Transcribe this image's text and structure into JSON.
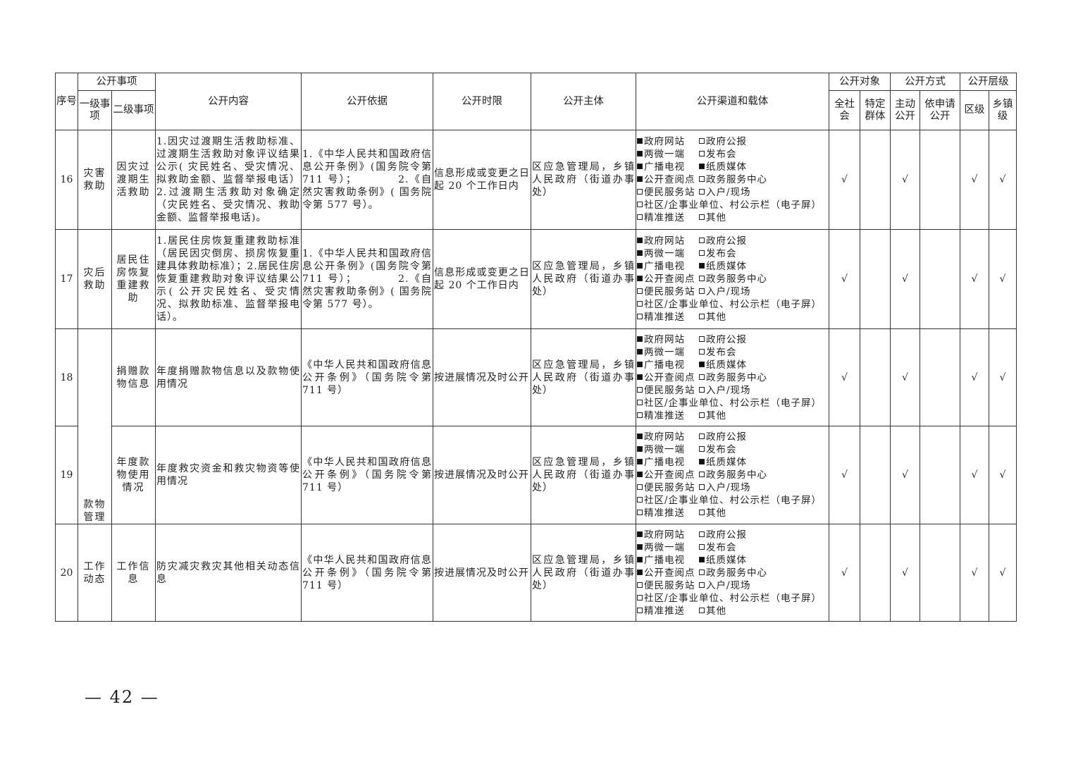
{
  "header": {
    "seq": "序号",
    "item_group": "公开事项",
    "level1": "一级事项",
    "level2": "二级事项",
    "content": "公开内容",
    "basis": "公开依据",
    "deadline": "公开时限",
    "subject": "公开主体",
    "channel": "公开渠道和载体",
    "target": "公开对象",
    "target_all": "全社会",
    "target_specific": "特定群体",
    "method": "公开方式",
    "method_active": "主动公开",
    "method_request": "依申请公开",
    "level": "公开层级",
    "level_district": "区级",
    "level_town": "乡镇级"
  },
  "check_mark": "√",
  "rows": [
    {
      "seq": "16",
      "level1": "灾害救助",
      "level2": "因灾过渡期生活救助",
      "content": "1.因灾过渡期生活救助标准、过渡期生活救助对象评议结果公示( 灾民姓名、受灾情况、拟救助金额、监督举报电话）2.过渡期生活救助对象确定（灾民姓名、受灾情况、救助金额、监督举报电话)。",
      "basis": "1.《中华人民共和国政府信息公开条例》(国务院令第711 号）；　　　　2.《自然灾害救助条例》( 国务院令第 577 号）。",
      "deadline": "信息形成或变更之日起 20 个工作日内",
      "subject": "区应急管理局，乡镇人民政府（街道办事处）",
      "all": true,
      "specific": false,
      "active": true,
      "request": false,
      "district": true,
      "town": true
    },
    {
      "seq": "17",
      "level1": "灾后救助",
      "level2": "居民住房恢复重建救助",
      "content": "1.居民住房恢复重建救助标准（居民因灾倒房、损房恢复重建具体救助标准）；2.居民住房恢复重建救助对象评议结果公示( 公开灾民姓名、受灾情况、拟救助标准、监督举报电话）。",
      "basis": "1.《中华人民共和国政府信息公开条例》(国务院令第711 号）；　　　　2.《自然灾害救助条例》( 国务院令第 577 号）。",
      "deadline": "信息形成或变更之日起 20 个工作日内",
      "subject": "区应急管理局，乡镇人民政府（街道办事处）",
      "all": true,
      "specific": false,
      "active": true,
      "request": false,
      "district": true,
      "town": true
    },
    {
      "seq": "18",
      "level1": "款物管理",
      "level2": "捐赠款物信息",
      "content": "年度捐赠款物信息以及款物使用情况",
      "basis": "《中华人民共和国政府信息公开条例》（国务院令第 711 号）",
      "deadline": "按进展情况及时公开",
      "subject": "区应急管理局，乡镇人民政府（街道办事处）",
      "all": true,
      "specific": false,
      "active": true,
      "request": false,
      "district": true,
      "town": true
    },
    {
      "seq": "19",
      "level1": "",
      "level2": "年度款物使用情况",
      "content": "年度救灾资金和救灾物资等使用情况",
      "basis": "《中华人民共和国政府信息公开条例》（国务院令第 711 号）",
      "deadline": "按进展情况及时公开",
      "subject": "区应急管理局，乡镇人民政府（街道办事处）",
      "all": true,
      "specific": false,
      "active": true,
      "request": false,
      "district": true,
      "town": true
    },
    {
      "seq": "20",
      "level1": "工作动态",
      "level2": "工作信息",
      "content": "防灾减灾救灾其他相关动态信息",
      "basis": "《中华人民共和国政府信息公开条例》（国务院令第 711 号）",
      "deadline": "按进展情况及时公开",
      "subject": "区应急管理局，乡镇人民政府（街道办事处）",
      "all": true,
      "specific": false,
      "active": true,
      "request": false,
      "district": true,
      "town": true
    }
  ],
  "channels": [
    {
      "label": "政府网站",
      "checked": true
    },
    {
      "label": "政府公报",
      "checked": false
    },
    {
      "label": "两微一端",
      "checked": true
    },
    {
      "label": "发布会",
      "checked": false
    },
    {
      "label": "广播电视",
      "checked": true
    },
    {
      "label": "纸质媒体",
      "checked": true
    },
    {
      "label": "公开查阅点",
      "checked": true
    },
    {
      "label": "政务服务中心",
      "checked": false
    },
    {
      "label": "便民服务站",
      "checked": false
    },
    {
      "label": "入户/现场",
      "checked": false
    },
    {
      "label": "社区/企事业单位、村公示栏（电子屏）",
      "checked": false
    },
    {
      "label": "精准推送",
      "checked": false
    },
    {
      "label": "其他",
      "checked": false
    }
  ],
  "page_number": "— 42 —"
}
